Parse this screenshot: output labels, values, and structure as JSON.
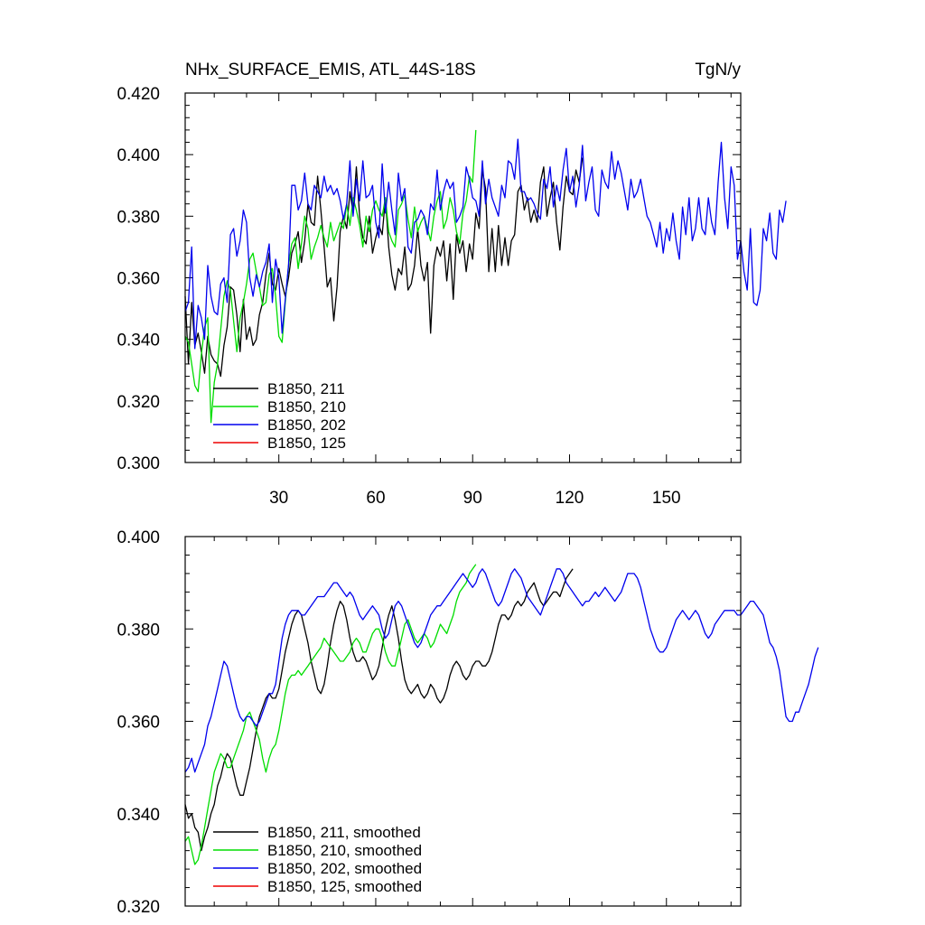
{
  "chart_data": [
    {
      "type": "line",
      "title": "NHx_SURFACE_EMIS, ATL_44S-18S",
      "units": "TgN/y",
      "xlim": [
        1,
        173
      ],
      "ylim": [
        0.3,
        0.42
      ],
      "xticks": [
        30,
        60,
        90,
        120,
        150
      ],
      "yticks": [
        0.3,
        0.32,
        0.34,
        0.36,
        0.38,
        0.4,
        0.42
      ],
      "yticklabels": [
        "0.300",
        "0.320",
        "0.340",
        "0.360",
        "0.380",
        "0.400",
        "0.420"
      ],
      "legend_position": "bottom-left",
      "series": [
        {
          "name": "B1850, 211",
          "color": "#000000",
          "values": [
            0.354,
            0.332,
            0.352,
            0.338,
            0.342,
            0.336,
            0.329,
            0.341,
            0.335,
            0.333,
            0.332,
            0.328,
            0.338,
            0.344,
            0.357,
            0.356,
            0.348,
            0.336,
            0.353,
            0.34,
            0.344,
            0.338,
            0.34,
            0.348,
            0.352,
            0.361,
            0.368,
            0.358,
            0.356,
            0.363,
            0.358,
            0.354,
            0.36,
            0.368,
            0.371,
            0.375,
            0.365,
            0.372,
            0.384,
            0.378,
            0.377,
            0.393,
            0.382,
            0.37,
            0.357,
            0.36,
            0.346,
            0.357,
            0.375,
            0.38,
            0.376,
            0.388,
            0.381,
            0.396,
            0.38,
            0.373,
            0.371,
            0.38,
            0.368,
            0.373,
            0.377,
            0.374,
            0.386,
            0.37,
            0.361,
            0.356,
            0.363,
            0.361,
            0.37,
            0.356,
            0.358,
            0.364,
            0.376,
            0.364,
            0.359,
            0.365,
            0.342,
            0.364,
            0.37,
            0.367,
            0.372,
            0.359,
            0.371,
            0.353,
            0.374,
            0.368,
            0.372,
            0.362,
            0.371,
            0.366,
            0.381,
            0.376,
            0.395,
            0.389,
            0.362,
            0.376,
            0.362,
            0.377,
            0.364,
            0.373,
            0.364,
            0.372,
            0.374,
            0.388,
            0.39,
            0.382,
            0.386,
            0.378,
            0.382,
            0.378,
            0.391,
            0.396,
            0.38,
            0.386,
            0.391,
            0.378,
            0.369,
            0.383,
            0.393,
            0.388,
            0.387,
            0.395,
            0.391,
            0.399
          ]
        },
        {
          "name": "B1850, 210",
          "color": "#00dd00",
          "values": [
            0.341,
            0.339,
            0.332,
            0.325,
            0.323,
            0.335,
            0.344,
            0.347,
            0.313,
            0.326,
            0.332,
            0.343,
            0.354,
            0.359,
            0.356,
            0.346,
            0.336,
            0.347,
            0.352,
            0.358,
            0.366,
            0.368,
            0.362,
            0.357,
            0.351,
            0.352,
            0.361,
            0.363,
            0.354,
            0.341,
            0.339,
            0.352,
            0.364,
            0.371,
            0.373,
            0.363,
            0.371,
            0.38,
            0.376,
            0.366,
            0.37,
            0.373,
            0.377,
            0.373,
            0.37,
            0.378,
            0.372,
            0.375,
            0.378,
            0.376,
            0.384,
            0.377,
            0.386,
            0.382,
            0.377,
            0.37,
            0.38,
            0.375,
            0.382,
            0.385,
            0.382,
            0.38,
            0.386,
            0.375,
            0.372,
            0.37,
            0.382,
            0.384,
            0.387,
            0.379,
            0.373,
            0.383,
            0.375,
            0.378,
            0.38,
            0.376,
            0.372,
            0.38,
            0.385,
            0.388,
            0.376,
            0.379,
            0.386,
            0.382,
            0.375,
            0.371,
            0.381,
            0.385,
            0.393,
            0.391,
            0.408
          ]
        },
        {
          "name": "B1850, 202",
          "color": "#0000ee",
          "values": [
            0.349,
            0.352,
            0.37,
            0.337,
            0.351,
            0.347,
            0.34,
            0.364,
            0.354,
            0.349,
            0.348,
            0.358,
            0.36,
            0.352,
            0.374,
            0.376,
            0.367,
            0.372,
            0.382,
            0.378,
            0.36,
            0.354,
            0.361,
            0.357,
            0.362,
            0.365,
            0.371,
            0.352,
            0.366,
            0.36,
            0.342,
            0.353,
            0.364,
            0.39,
            0.39,
            0.382,
            0.385,
            0.394,
            0.384,
            0.382,
            0.39,
            0.388,
            0.386,
            0.393,
            0.388,
            0.39,
            0.387,
            0.389,
            0.385,
            0.379,
            0.384,
            0.398,
            0.38,
            0.392,
            0.385,
            0.398,
            0.386,
            0.387,
            0.39,
            0.378,
            0.373,
            0.397,
            0.381,
            0.391,
            0.382,
            0.374,
            0.394,
            0.385,
            0.389,
            0.37,
            0.368,
            0.378,
            0.379,
            0.382,
            0.38,
            0.374,
            0.384,
            0.382,
            0.395,
            0.382,
            0.388,
            0.392,
            0.389,
            0.391,
            0.378,
            0.38,
            0.383,
            0.396,
            0.392,
            0.386,
            0.385,
            0.38,
            0.398,
            0.384,
            0.392,
            0.386,
            0.383,
            0.38,
            0.39,
            0.386,
            0.398,
            0.397,
            0.392,
            0.405,
            0.388,
            0.388,
            0.385,
            0.386,
            0.384,
            0.381,
            0.379,
            0.392,
            0.389,
            0.396,
            0.383,
            0.39,
            0.385,
            0.395,
            0.402,
            0.388,
            0.393,
            0.383,
            0.39,
            0.403,
            0.385,
            0.391,
            0.396,
            0.382,
            0.38,
            0.395,
            0.391,
            0.389,
            0.401,
            0.392,
            0.398,
            0.394,
            0.388,
            0.382,
            0.392,
            0.386,
            0.388,
            0.392,
            0.386,
            0.38,
            0.378,
            0.374,
            0.37,
            0.378,
            0.368,
            0.376,
            0.372,
            0.381,
            0.372,
            0.366,
            0.383,
            0.374,
            0.386,
            0.372,
            0.376,
            0.386,
            0.376,
            0.374,
            0.386,
            0.378,
            0.374,
            0.391,
            0.404,
            0.386,
            0.376,
            0.396,
            0.39,
            0.366,
            0.372,
            0.362,
            0.356,
            0.376,
            0.352,
            0.351,
            0.356,
            0.376,
            0.372,
            0.381,
            0.368,
            0.366,
            0.382,
            0.378,
            0.385
          ]
        },
        {
          "name": "B1850, 125",
          "color": "#ee0000",
          "values": []
        }
      ]
    },
    {
      "type": "line",
      "title": "",
      "xlim": [
        1,
        173
      ],
      "ylim": [
        0.32,
        0.4
      ],
      "xticks": [
        30,
        60,
        90,
        120,
        150
      ],
      "yticks": [
        0.32,
        0.34,
        0.36,
        0.38,
        0.4
      ],
      "yticklabels": [
        "0.320",
        "0.340",
        "0.360",
        "0.380",
        "0.400"
      ],
      "legend_position": "bottom-left",
      "series": [
        {
          "name": "B1850, 211, smoothed",
          "color": "#000000",
          "values": [
            0.342,
            0.339,
            0.34,
            0.337,
            0.336,
            0.332,
            0.335,
            0.337,
            0.34,
            0.342,
            0.346,
            0.348,
            0.351,
            0.353,
            0.352,
            0.349,
            0.346,
            0.344,
            0.344,
            0.347,
            0.35,
            0.354,
            0.358,
            0.361,
            0.363,
            0.365,
            0.366,
            0.365,
            0.365,
            0.367,
            0.371,
            0.375,
            0.378,
            0.381,
            0.383,
            0.384,
            0.383,
            0.38,
            0.377,
            0.373,
            0.37,
            0.367,
            0.366,
            0.368,
            0.372,
            0.377,
            0.381,
            0.384,
            0.386,
            0.385,
            0.382,
            0.378,
            0.375,
            0.373,
            0.373,
            0.374,
            0.373,
            0.371,
            0.369,
            0.37,
            0.372,
            0.376,
            0.38,
            0.383,
            0.385,
            0.382,
            0.378,
            0.373,
            0.369,
            0.367,
            0.366,
            0.367,
            0.368,
            0.366,
            0.365,
            0.366,
            0.368,
            0.367,
            0.365,
            0.364,
            0.365,
            0.367,
            0.37,
            0.372,
            0.373,
            0.372,
            0.37,
            0.369,
            0.37,
            0.372,
            0.373,
            0.373,
            0.372,
            0.372,
            0.373,
            0.375,
            0.378,
            0.381,
            0.383,
            0.383,
            0.382,
            0.383,
            0.385,
            0.386,
            0.385,
            0.386,
            0.388,
            0.389,
            0.39,
            0.388,
            0.386,
            0.385,
            0.386,
            0.387,
            0.388,
            0.388,
            0.387,
            0.389,
            0.391,
            0.392,
            0.393
          ]
        },
        {
          "name": "B1850, 210, smoothed",
          "color": "#00dd00",
          "values": [
            0.334,
            0.335,
            0.332,
            0.329,
            0.33,
            0.333,
            0.337,
            0.341,
            0.345,
            0.349,
            0.351,
            0.353,
            0.352,
            0.35,
            0.35,
            0.352,
            0.354,
            0.356,
            0.358,
            0.361,
            0.362,
            0.36,
            0.358,
            0.356,
            0.352,
            0.349,
            0.352,
            0.354,
            0.355,
            0.358,
            0.362,
            0.366,
            0.369,
            0.37,
            0.37,
            0.371,
            0.37,
            0.371,
            0.372,
            0.373,
            0.374,
            0.375,
            0.376,
            0.378,
            0.377,
            0.376,
            0.375,
            0.374,
            0.373,
            0.373,
            0.374,
            0.375,
            0.377,
            0.378,
            0.377,
            0.375,
            0.375,
            0.377,
            0.379,
            0.38,
            0.38,
            0.378,
            0.375,
            0.373,
            0.372,
            0.372,
            0.375,
            0.378,
            0.381,
            0.382,
            0.38,
            0.378,
            0.377,
            0.378,
            0.379,
            0.378,
            0.376,
            0.377,
            0.379,
            0.381,
            0.38,
            0.379,
            0.381,
            0.383,
            0.386,
            0.388,
            0.389,
            0.39,
            0.392,
            0.393,
            0.394
          ]
        },
        {
          "name": "B1850, 202, smoothed",
          "color": "#0000ee",
          "values": [
            0.349,
            0.35,
            0.352,
            0.349,
            0.351,
            0.353,
            0.355,
            0.359,
            0.361,
            0.364,
            0.367,
            0.37,
            0.373,
            0.372,
            0.369,
            0.366,
            0.363,
            0.361,
            0.36,
            0.361,
            0.361,
            0.36,
            0.359,
            0.36,
            0.362,
            0.364,
            0.366,
            0.366,
            0.368,
            0.373,
            0.378,
            0.381,
            0.383,
            0.384,
            0.384,
            0.384,
            0.383,
            0.383,
            0.384,
            0.385,
            0.386,
            0.387,
            0.387,
            0.387,
            0.388,
            0.389,
            0.39,
            0.39,
            0.389,
            0.388,
            0.387,
            0.388,
            0.387,
            0.385,
            0.383,
            0.382,
            0.383,
            0.384,
            0.385,
            0.384,
            0.383,
            0.38,
            0.378,
            0.379,
            0.382,
            0.385,
            0.386,
            0.385,
            0.383,
            0.381,
            0.379,
            0.377,
            0.376,
            0.377,
            0.379,
            0.381,
            0.383,
            0.384,
            0.385,
            0.385,
            0.386,
            0.387,
            0.388,
            0.389,
            0.39,
            0.391,
            0.392,
            0.391,
            0.39,
            0.389,
            0.39,
            0.392,
            0.393,
            0.392,
            0.39,
            0.388,
            0.386,
            0.385,
            0.386,
            0.388,
            0.39,
            0.392,
            0.393,
            0.392,
            0.391,
            0.389,
            0.387,
            0.386,
            0.385,
            0.384,
            0.383,
            0.385,
            0.387,
            0.389,
            0.391,
            0.393,
            0.393,
            0.392,
            0.39,
            0.389,
            0.388,
            0.387,
            0.386,
            0.385,
            0.386,
            0.386,
            0.387,
            0.388,
            0.387,
            0.388,
            0.389,
            0.388,
            0.387,
            0.386,
            0.387,
            0.388,
            0.39,
            0.392,
            0.392,
            0.392,
            0.391,
            0.389,
            0.386,
            0.383,
            0.38,
            0.378,
            0.376,
            0.375,
            0.375,
            0.376,
            0.378,
            0.38,
            0.382,
            0.383,
            0.384,
            0.383,
            0.382,
            0.383,
            0.384,
            0.383,
            0.381,
            0.379,
            0.378,
            0.379,
            0.381,
            0.382,
            0.383,
            0.384,
            0.384,
            0.384,
            0.384,
            0.383,
            0.383,
            0.384,
            0.385,
            0.386,
            0.386,
            0.385,
            0.384,
            0.383,
            0.38,
            0.377,
            0.376,
            0.374,
            0.371,
            0.366,
            0.361,
            0.36,
            0.36,
            0.362,
            0.362,
            0.364,
            0.366,
            0.368,
            0.371,
            0.374,
            0.376
          ]
        },
        {
          "name": "B1850, 125, smoothed",
          "color": "#ee0000",
          "values": []
        }
      ]
    }
  ]
}
